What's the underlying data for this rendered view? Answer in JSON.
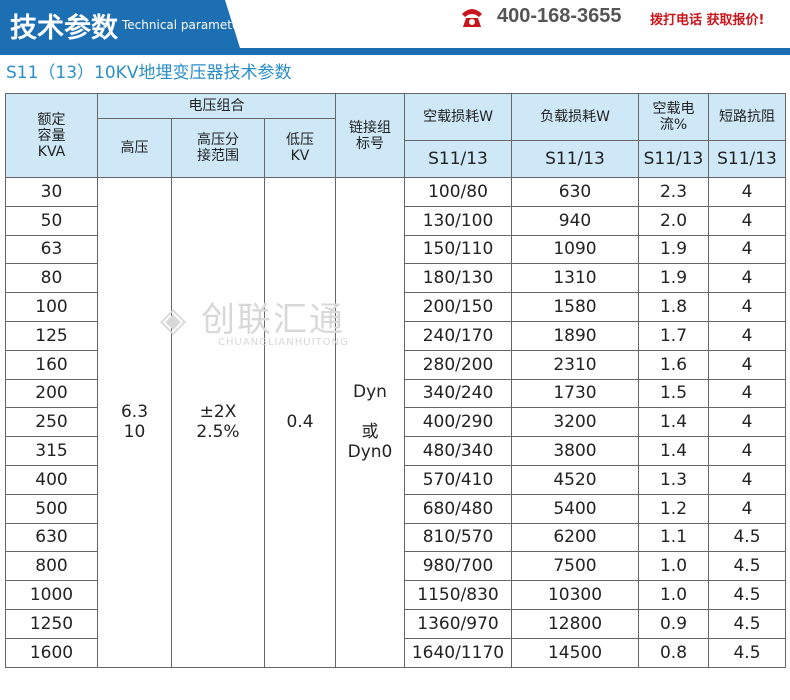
{
  "header": {
    "title": "技术参数",
    "title_en": "Technical parameter",
    "phone": "400-168-3655",
    "cta": "拨打电话  获取报价!",
    "accent": "#1d6fb3",
    "cta_color": "#c8161d",
    "phone_icon": "phone-icon"
  },
  "subtitle": "S11（13）10KV地埋变压器技术参数",
  "watermark": {
    "cn": "创联汇通",
    "en": "CHUANGLIANHUITONG"
  },
  "table": {
    "headers": {
      "capacity": "额定\n容量\nKVA",
      "voltage_group": "电压组合",
      "hv": "高压",
      "tap": "高压分\n接范围",
      "lv": "低压\nKV",
      "vector": "链接组\n标号",
      "no_load_loss": "空载损耗W",
      "load_loss": "负载损耗W",
      "no_load_current": "空载电流%",
      "impedance": "短路抗阻",
      "series": "S11/13"
    },
    "merged": {
      "hv": "6.3\n10",
      "tap": "±2X\n2.5%",
      "lv": "0.4",
      "vector": "Dyn\n\n或\nDyn0"
    },
    "rows": [
      [
        "30",
        "100/80",
        "630",
        "2.3",
        "4"
      ],
      [
        "50",
        "130/100",
        "940",
        "2.0",
        "4"
      ],
      [
        "63",
        "150/110",
        "1090",
        "1.9",
        "4"
      ],
      [
        "80",
        "180/130",
        "1310",
        "1.9",
        "4"
      ],
      [
        "100",
        "200/150",
        "1580",
        "1.8",
        "4"
      ],
      [
        "125",
        "240/170",
        "1890",
        "1.7",
        "4"
      ],
      [
        "160",
        "280/200",
        "2310",
        "1.6",
        "4"
      ],
      [
        "200",
        "340/240",
        "1730",
        "1.5",
        "4"
      ],
      [
        "250",
        "400/290",
        "3200",
        "1.4",
        "4"
      ],
      [
        "315",
        "480/340",
        "3800",
        "1.4",
        "4"
      ],
      [
        "400",
        "570/410",
        "4520",
        "1.3",
        "4"
      ],
      [
        "500",
        "680/480",
        "5400",
        "1.2",
        "4"
      ],
      [
        "630",
        "810/570",
        "6200",
        "1.1",
        "4.5"
      ],
      [
        "800",
        "980/700",
        "7500",
        "1.0",
        "4.5"
      ],
      [
        "1000",
        "1150/830",
        "10300",
        "1.0",
        "4.5"
      ],
      [
        "1250",
        "1360/970",
        "12800",
        "0.9",
        "4.5"
      ],
      [
        "1600",
        "1640/1170",
        "14500",
        "0.8",
        "4.5"
      ]
    ]
  }
}
